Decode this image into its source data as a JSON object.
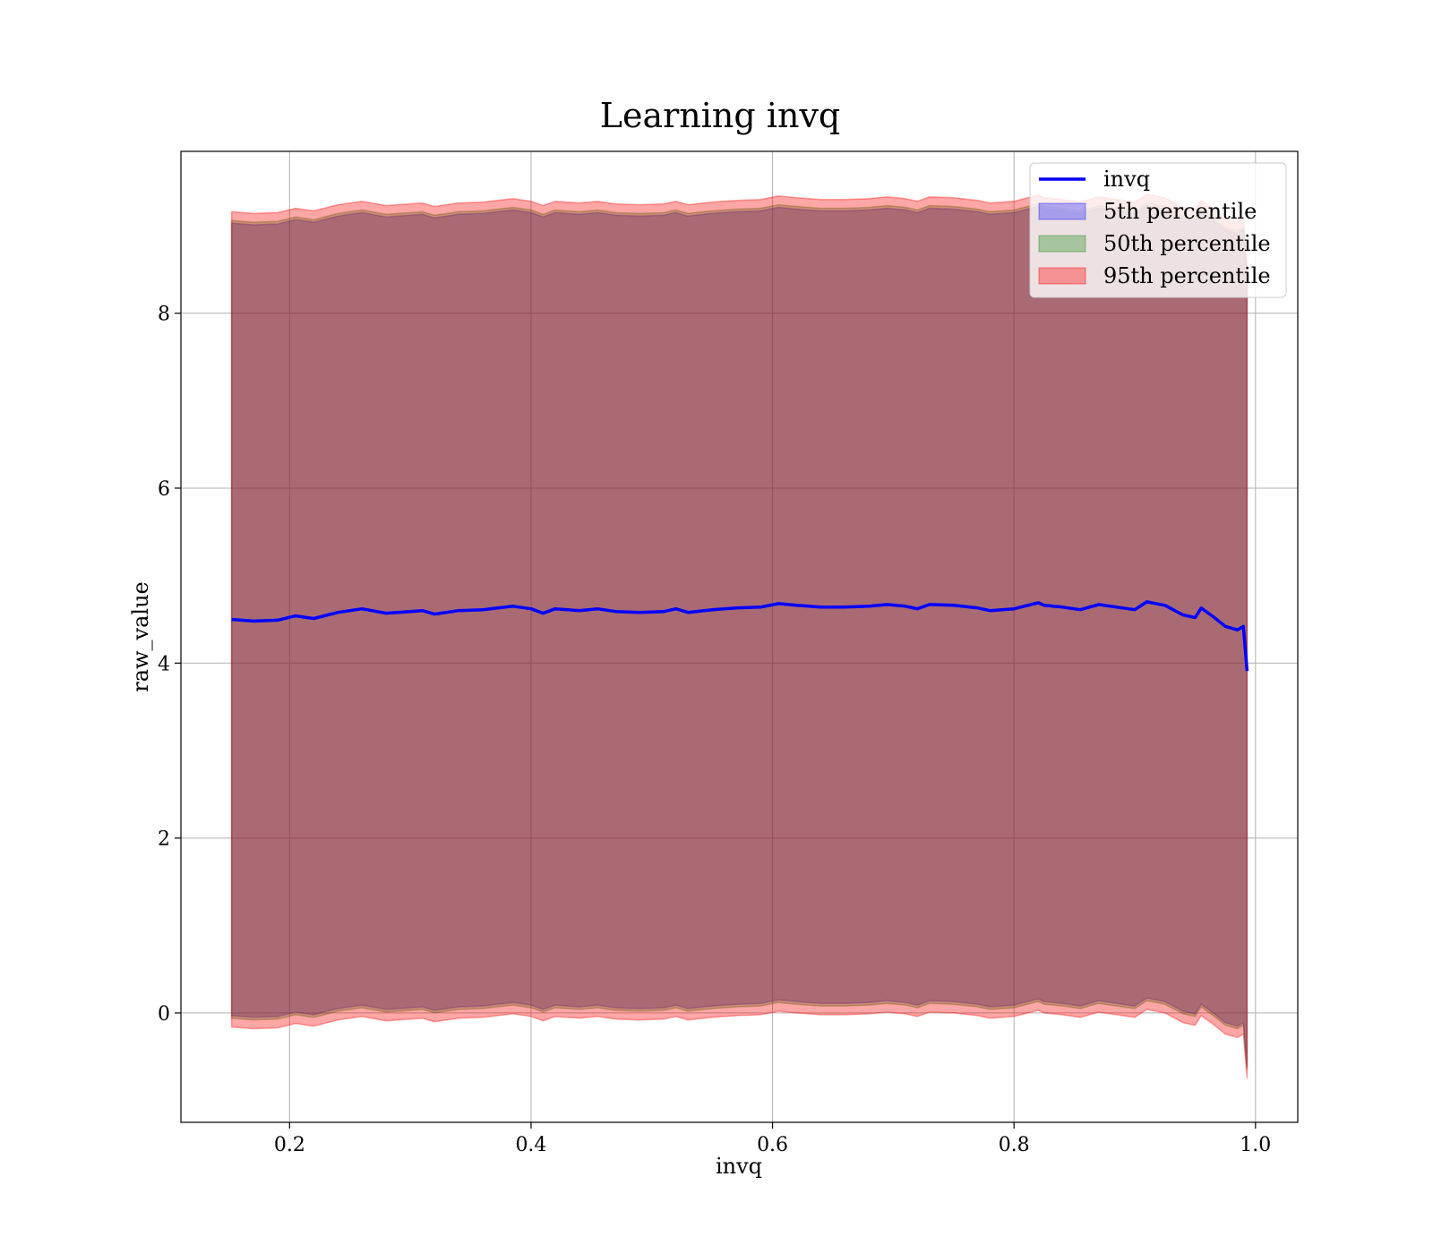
{
  "chart_data": {
    "type": "line",
    "title": "Learning invq",
    "xlabel": "invq",
    "ylabel": "raw_value",
    "xlim": [
      0.11,
      1.035
    ],
    "ylim": [
      -1.25,
      9.85
    ],
    "xticks": [
      0.2,
      0.4,
      0.6,
      0.8,
      1.0
    ],
    "xtick_labels": [
      "0.2",
      "0.4",
      "0.6",
      "0.8",
      "1.0"
    ],
    "yticks": [
      0,
      2,
      4,
      6,
      8
    ],
    "ytick_labels": [
      "0",
      "2",
      "4",
      "6",
      "8"
    ],
    "grid": true,
    "legend_position": "top-right",
    "x": [
      0.152,
      0.17,
      0.19,
      0.205,
      0.22,
      0.24,
      0.26,
      0.28,
      0.3,
      0.31,
      0.32,
      0.34,
      0.36,
      0.385,
      0.4,
      0.41,
      0.42,
      0.44,
      0.455,
      0.47,
      0.49,
      0.51,
      0.52,
      0.53,
      0.55,
      0.57,
      0.59,
      0.605,
      0.62,
      0.64,
      0.66,
      0.68,
      0.695,
      0.71,
      0.72,
      0.73,
      0.75,
      0.77,
      0.78,
      0.8,
      0.82,
      0.825,
      0.84,
      0.855,
      0.87,
      0.885,
      0.9,
      0.91,
      0.925,
      0.94,
      0.95,
      0.955,
      0.965,
      0.975,
      0.985,
      0.99,
      0.993
    ],
    "series": [
      {
        "name": "invq",
        "type": "line",
        "color": "#0000ff",
        "y": [
          4.5,
          4.48,
          4.49,
          4.54,
          4.51,
          4.58,
          4.62,
          4.57,
          4.59,
          4.6,
          4.56,
          4.6,
          4.61,
          4.65,
          4.62,
          4.57,
          4.62,
          4.6,
          4.62,
          4.59,
          4.58,
          4.59,
          4.62,
          4.58,
          4.61,
          4.63,
          4.64,
          4.68,
          4.66,
          4.64,
          4.64,
          4.65,
          4.67,
          4.65,
          4.62,
          4.67,
          4.66,
          4.63,
          4.6,
          4.62,
          4.69,
          4.66,
          4.64,
          4.61,
          4.67,
          4.64,
          4.61,
          4.7,
          4.66,
          4.55,
          4.52,
          4.63,
          4.53,
          4.42,
          4.38,
          4.42,
          3.91
        ]
      },
      {
        "name": "5th percentile",
        "type": "band",
        "color": "#0000ff",
        "alpha": 0.3,
        "lower": [
          -0.03,
          -0.05,
          -0.04,
          0.01,
          -0.02,
          0.05,
          0.09,
          0.04,
          0.06,
          0.07,
          0.03,
          0.07,
          0.08,
          0.12,
          0.09,
          0.04,
          0.09,
          0.07,
          0.09,
          0.06,
          0.05,
          0.06,
          0.09,
          0.05,
          0.08,
          0.1,
          0.11,
          0.15,
          0.13,
          0.11,
          0.11,
          0.12,
          0.14,
          0.12,
          0.09,
          0.14,
          0.13,
          0.1,
          0.07,
          0.09,
          0.16,
          0.13,
          0.11,
          0.08,
          0.14,
          0.11,
          0.08,
          0.17,
          0.13,
          0.02,
          -0.01,
          0.1,
          0.0,
          -0.11,
          -0.15,
          -0.11,
          -0.62
        ],
        "upper": [
          9.03,
          9.01,
          9.02,
          9.07,
          9.04,
          9.11,
          9.15,
          9.1,
          9.12,
          9.13,
          9.09,
          9.13,
          9.14,
          9.18,
          9.15,
          9.1,
          9.15,
          9.13,
          9.15,
          9.12,
          9.11,
          9.12,
          9.15,
          9.11,
          9.14,
          9.16,
          9.17,
          9.21,
          9.19,
          9.17,
          9.17,
          9.18,
          9.2,
          9.18,
          9.15,
          9.2,
          9.19,
          9.16,
          9.13,
          9.15,
          9.22,
          9.19,
          9.17,
          9.14,
          9.2,
          9.17,
          9.14,
          9.23,
          9.19,
          9.08,
          9.05,
          9.16,
          9.06,
          8.95,
          8.91,
          8.95,
          8.44
        ]
      },
      {
        "name": "50th percentile",
        "type": "band",
        "color": "#008000",
        "alpha": 0.3,
        "lower": [
          -0.06,
          -0.08,
          -0.07,
          -0.02,
          -0.05,
          0.02,
          0.06,
          0.01,
          0.03,
          0.04,
          0.0,
          0.04,
          0.05,
          0.09,
          0.06,
          0.01,
          0.06,
          0.04,
          0.06,
          0.03,
          0.02,
          0.03,
          0.06,
          0.02,
          0.05,
          0.07,
          0.08,
          0.12,
          0.1,
          0.08,
          0.08,
          0.09,
          0.11,
          0.09,
          0.06,
          0.11,
          0.1,
          0.07,
          0.04,
          0.06,
          0.13,
          0.1,
          0.08,
          0.05,
          0.11,
          0.08,
          0.05,
          0.14,
          0.1,
          -0.01,
          -0.04,
          0.07,
          -0.03,
          -0.14,
          -0.18,
          -0.14,
          -0.65
        ],
        "upper": [
          9.06,
          9.04,
          9.05,
          9.1,
          9.07,
          9.14,
          9.18,
          9.13,
          9.15,
          9.16,
          9.12,
          9.16,
          9.17,
          9.21,
          9.18,
          9.13,
          9.18,
          9.16,
          9.18,
          9.15,
          9.14,
          9.15,
          9.18,
          9.14,
          9.17,
          9.19,
          9.2,
          9.24,
          9.22,
          9.2,
          9.2,
          9.21,
          9.23,
          9.21,
          9.18,
          9.23,
          9.22,
          9.19,
          9.16,
          9.18,
          9.25,
          9.22,
          9.2,
          9.17,
          9.23,
          9.2,
          9.17,
          9.26,
          9.22,
          9.11,
          9.08,
          9.19,
          9.09,
          8.98,
          8.94,
          8.98,
          8.47
        ]
      },
      {
        "name": "95th percentile",
        "type": "band",
        "color": "#ff0000",
        "alpha": 0.35,
        "lower": [
          -0.16,
          -0.18,
          -0.17,
          -0.12,
          -0.15,
          -0.08,
          -0.04,
          -0.09,
          -0.07,
          -0.06,
          -0.1,
          -0.06,
          -0.05,
          -0.01,
          -0.04,
          -0.09,
          -0.04,
          -0.06,
          -0.04,
          -0.07,
          -0.08,
          -0.07,
          -0.04,
          -0.08,
          -0.05,
          -0.03,
          -0.02,
          0.02,
          0.0,
          -0.02,
          -0.02,
          -0.01,
          0.01,
          -0.01,
          -0.04,
          0.01,
          0.0,
          -0.03,
          -0.06,
          -0.04,
          0.03,
          0.0,
          -0.02,
          -0.05,
          0.01,
          -0.02,
          -0.05,
          0.04,
          0.0,
          -0.11,
          -0.14,
          -0.03,
          -0.13,
          -0.24,
          -0.28,
          -0.24,
          -0.75
        ],
        "upper": [
          9.16,
          9.14,
          9.15,
          9.2,
          9.17,
          9.24,
          9.28,
          9.23,
          9.25,
          9.26,
          9.22,
          9.26,
          9.27,
          9.31,
          9.28,
          9.23,
          9.28,
          9.26,
          9.28,
          9.25,
          9.24,
          9.25,
          9.28,
          9.24,
          9.27,
          9.29,
          9.3,
          9.34,
          9.32,
          9.3,
          9.3,
          9.31,
          9.33,
          9.31,
          9.28,
          9.33,
          9.32,
          9.29,
          9.26,
          9.28,
          9.35,
          9.32,
          9.3,
          9.27,
          9.33,
          9.3,
          9.27,
          9.36,
          9.32,
          9.21,
          9.18,
          9.29,
          9.19,
          9.08,
          9.04,
          9.08,
          8.57
        ]
      }
    ]
  }
}
